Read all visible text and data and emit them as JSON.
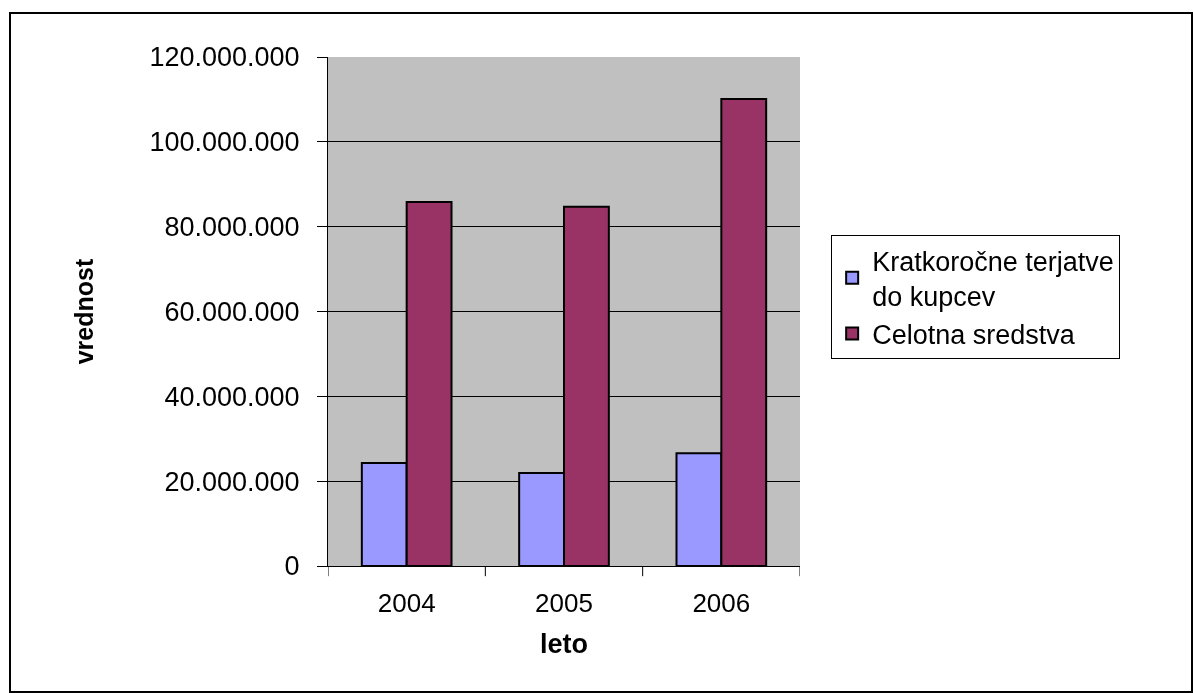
{
  "chart_data": {
    "type": "bar",
    "xlabel": "leto",
    "ylabel": "vrednost",
    "categories": [
      "2004",
      "2005",
      "2006"
    ],
    "series": [
      {
        "name": "Kratkoročne terjatve do kupcev",
        "color": "#9999ff",
        "values": [
          24300000,
          21900000,
          26600000
        ]
      },
      {
        "name": "Celotna sredstva",
        "color": "#993366",
        "values": [
          85800000,
          84700000,
          110100000
        ]
      }
    ],
    "ylim": [
      0,
      120000000
    ],
    "yticks": [
      0,
      {
        "value": 20000000,
        "label": "20.000.000"
      },
      {
        "value": 40000000,
        "label": "40.000.000"
      },
      {
        "value": 60000000,
        "label": "60.000.000"
      },
      {
        "value": 80000000,
        "label": "80.000.000"
      },
      {
        "value": 100000000,
        "label": "100.000.000"
      },
      {
        "value": 120000000,
        "label": "120.000.000"
      }
    ],
    "grid": "y",
    "legend": "right"
  }
}
